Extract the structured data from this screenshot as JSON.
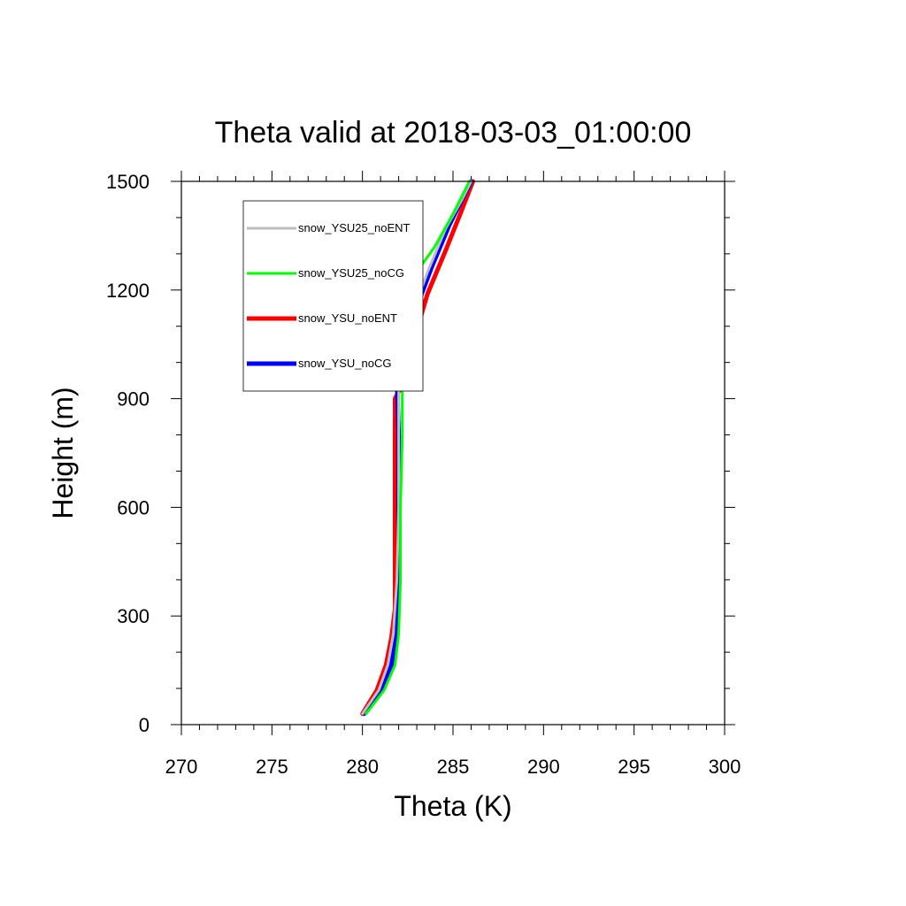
{
  "chart_data": {
    "type": "line",
    "title": "Theta valid at 2018-03-03_01:00:00",
    "xlabel": "Theta (K)",
    "ylabel": "Height (m)",
    "xlim": [
      270,
      300
    ],
    "ylim": [
      0,
      1500
    ],
    "xticks": [
      270,
      275,
      280,
      285,
      290,
      295,
      300
    ],
    "yticks": [
      0,
      300,
      600,
      900,
      1200,
      1500
    ],
    "grid": false,
    "legend_position": "top-left",
    "series": [
      {
        "name": "snow_YSU25_noENT",
        "color": "#bebebe",
        "points": [
          [
            280.0,
            30
          ],
          [
            280.9,
            95
          ],
          [
            281.4,
            165
          ],
          [
            281.7,
            250
          ],
          [
            281.9,
            400
          ],
          [
            282.0,
            600
          ],
          [
            282.0,
            800
          ],
          [
            282.0,
            1000
          ],
          [
            282.1,
            1090
          ],
          [
            282.8,
            1140
          ],
          [
            283.6,
            1250
          ],
          [
            284.6,
            1370
          ],
          [
            285.5,
            1450
          ],
          [
            286.0,
            1500
          ]
        ]
      },
      {
        "name": "snow_YSU25_noCG",
        "color": "#00ff00",
        "points": [
          [
            280.2,
            30
          ],
          [
            281.2,
            95
          ],
          [
            281.8,
            165
          ],
          [
            282.0,
            250
          ],
          [
            282.1,
            400
          ],
          [
            282.1,
            600
          ],
          [
            282.2,
            800
          ],
          [
            282.2,
            1000
          ],
          [
            282.3,
            1190
          ],
          [
            283.0,
            1250
          ],
          [
            284.0,
            1320
          ],
          [
            285.0,
            1410
          ],
          [
            285.6,
            1470
          ],
          [
            285.9,
            1500
          ]
        ]
      },
      {
        "name": "snow_YSU_noENT",
        "color": "#ff0000",
        "points": [
          [
            280.0,
            30
          ],
          [
            280.8,
            95
          ],
          [
            281.3,
            165
          ],
          [
            281.6,
            240
          ],
          [
            281.8,
            320
          ],
          [
            281.8,
            500
          ],
          [
            281.8,
            700
          ],
          [
            281.8,
            900
          ],
          [
            282.1,
            930
          ],
          [
            282.6,
            990
          ],
          [
            283.0,
            1090
          ],
          [
            283.6,
            1190
          ],
          [
            284.6,
            1310
          ],
          [
            285.4,
            1410
          ],
          [
            286.1,
            1500
          ]
        ]
      },
      {
        "name": "snow_YSU_noCG",
        "color": "#0000ff",
        "points": [
          [
            280.1,
            30
          ],
          [
            281.1,
            95
          ],
          [
            281.6,
            165
          ],
          [
            281.9,
            250
          ],
          [
            282.0,
            400
          ],
          [
            282.0,
            600
          ],
          [
            282.0,
            800
          ],
          [
            281.9,
            960
          ],
          [
            282.2,
            1050
          ],
          [
            282.9,
            1140
          ],
          [
            283.8,
            1260
          ],
          [
            284.8,
            1380
          ],
          [
            285.7,
            1470
          ],
          [
            286.0,
            1500
          ]
        ]
      }
    ]
  }
}
